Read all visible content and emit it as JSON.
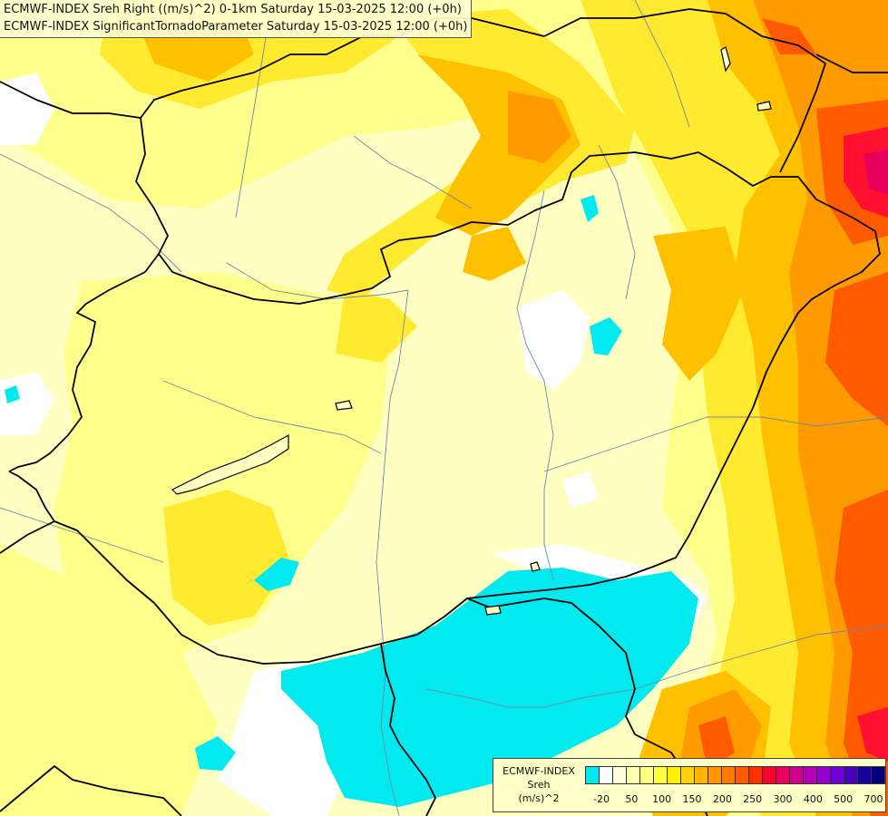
{
  "header": {
    "line1": "ECMWF-INDEX Sreh Right ((m/s)^2) 0-1km Saturday 15-03-2025 12:00 (+0h)",
    "line2": "ECMWF-INDEX SignificantTornadoParameter Saturday 15-03-2025 12:00 (+0h)"
  },
  "legend": {
    "model": "ECMWF-INDEX",
    "variable": "Sreh",
    "unit": "(m/s)^2",
    "colors": [
      "#00e8f0",
      "#ffffff",
      "#ffffda",
      "#ffffb0",
      "#ffff80",
      "#ffff40",
      "#fff000",
      "#ffd200",
      "#ffb400",
      "#ff9600",
      "#ff7800",
      "#ff5a00",
      "#ff3000",
      "#ff0028",
      "#e8005a",
      "#d0008c",
      "#b400b4",
      "#9400d0",
      "#7000d8",
      "#4800b8",
      "#18009c",
      "#000080"
    ],
    "ticks": [
      {
        "label": "-20",
        "index": 0
      },
      {
        "label": "50",
        "index": 2
      },
      {
        "label": "100",
        "index": 4
      },
      {
        "label": "150",
        "index": 6
      },
      {
        "label": "200",
        "index": 8
      },
      {
        "label": "250",
        "index": 10
      },
      {
        "label": "300",
        "index": 12
      },
      {
        "label": "400",
        "index": 14
      },
      {
        "label": "500",
        "index": 16
      },
      {
        "label": "700",
        "index": 18
      }
    ]
  }
}
